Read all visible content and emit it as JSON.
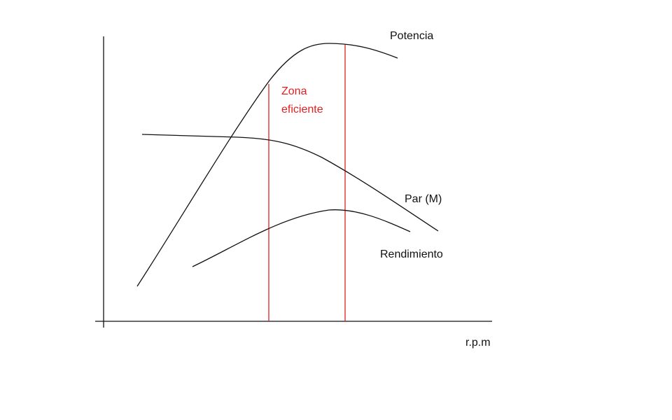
{
  "curves": [
    {
      "label": "Potencia"
    },
    {
      "label": "Par (M)"
    },
    {
      "label": "Rendimiento"
    }
  ],
  "zone": {
    "label_lines": [
      "Zona",
      "eficiente"
    ]
  },
  "x_axis": {
    "label": "r.p.m"
  }
}
